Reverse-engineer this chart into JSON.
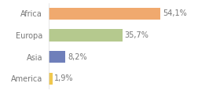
{
  "categories": [
    "Africa",
    "Europa",
    "Asia",
    "America"
  ],
  "values": [
    54.1,
    35.7,
    8.2,
    1.9
  ],
  "colors": [
    "#f0a96e",
    "#b5c98e",
    "#6f7fba",
    "#f0c84e"
  ],
  "labels": [
    "54,1%",
    "35,7%",
    "8,2%",
    "1,9%"
  ],
  "background_color": "#ffffff",
  "xlim": [
    0,
    70
  ],
  "bar_height": 0.55,
  "label_fontsize": 7,
  "tick_fontsize": 7,
  "text_color": "#777777"
}
